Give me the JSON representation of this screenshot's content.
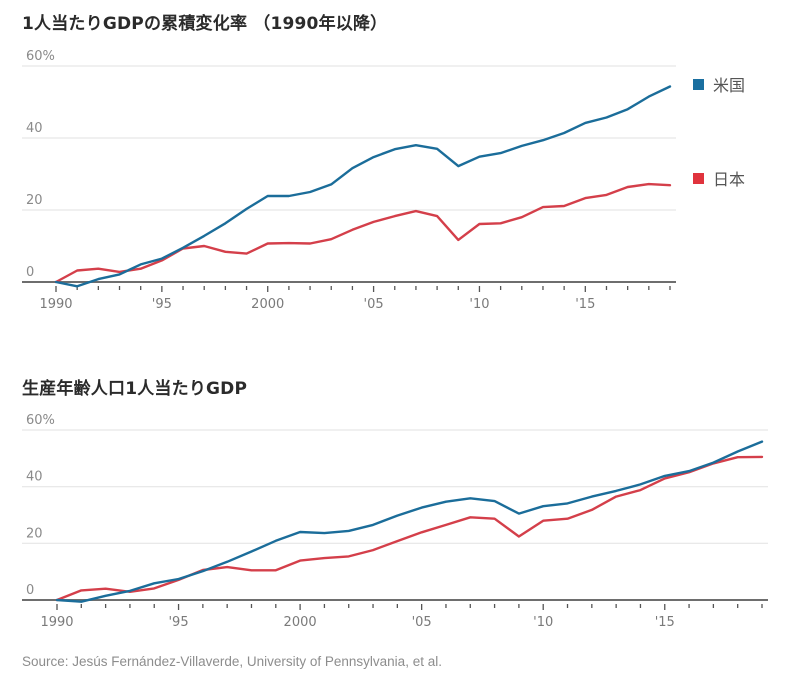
{
  "colors": {
    "us": "#1b6d9a",
    "japan": "#d43f4a",
    "us_legend": "#1a6fa0",
    "japan_legend": "#e0333d",
    "grid": "#e6e6e6",
    "axis": "#6e6e6e"
  },
  "legend": {
    "us_label": "米国",
    "japan_label": "日本"
  },
  "source": "Source: Jesús Fernández-Villaverde, University of Pennsylvania, et al.",
  "chart_data": [
    {
      "type": "line",
      "title": "1人当たりGDPの累積変化率 （1990年以降）",
      "xlabel": "",
      "ylabel": "",
      "xlim": [
        1990,
        2019
      ],
      "ylim": [
        0,
        60
      ],
      "y_ticks": [
        0,
        20,
        40,
        60
      ],
      "y_tick_labels": [
        "0",
        "20",
        "40",
        "60%"
      ],
      "x_tick_labels": [
        {
          "year": 1990,
          "label": "1990"
        },
        {
          "year": 1995,
          "label": "'95"
        },
        {
          "year": 2000,
          "label": "2000"
        },
        {
          "year": 2005,
          "label": "'05"
        },
        {
          "year": 2010,
          "label": "'10"
        },
        {
          "year": 2015,
          "label": "'15"
        }
      ],
      "grid": true,
      "legend_position": "right",
      "x": [
        1990,
        1991,
        1992,
        1993,
        1994,
        1995,
        1996,
        1997,
        1998,
        1999,
        2000,
        2001,
        2002,
        2003,
        2004,
        2005,
        2006,
        2007,
        2008,
        2009,
        2010,
        2011,
        2012,
        2013,
        2014,
        2015,
        2016,
        2017,
        2018,
        2019
      ],
      "series": [
        {
          "name": "米国",
          "key": "us",
          "values": [
            0,
            -1.2,
            0.8,
            2.1,
            4.9,
            6.5,
            9.5,
            12.8,
            16.3,
            20.3,
            23.9,
            23.9,
            25.0,
            27.1,
            31.6,
            34.7,
            36.9,
            38.0,
            37.0,
            32.2,
            34.8,
            35.8,
            37.8,
            39.4,
            41.4,
            44.2,
            45.7,
            48.0,
            51.5,
            54.3
          ]
        },
        {
          "name": "日本",
          "key": "japan",
          "values": [
            0,
            3.2,
            3.7,
            2.8,
            3.7,
            6.0,
            9.3,
            10.0,
            8.4,
            7.9,
            10.7,
            10.8,
            10.7,
            11.9,
            14.5,
            16.7,
            18.3,
            19.7,
            18.3,
            11.7,
            16.1,
            16.3,
            18.0,
            20.8,
            21.1,
            23.3,
            24.2,
            26.4,
            27.2,
            26.9
          ]
        }
      ]
    },
    {
      "type": "line",
      "title": "生産年齢人口1人当たりGDP",
      "xlabel": "",
      "ylabel": "",
      "xlim": [
        1990,
        2019
      ],
      "ylim": [
        0,
        60
      ],
      "y_ticks": [
        0,
        20,
        40,
        60
      ],
      "y_tick_labels": [
        "0",
        "20",
        "40",
        "60%"
      ],
      "x_tick_labels": [
        {
          "year": 1990,
          "label": "1990"
        },
        {
          "year": 1995,
          "label": "'95"
        },
        {
          "year": 2000,
          "label": "2000"
        },
        {
          "year": 2005,
          "label": "'05"
        },
        {
          "year": 2010,
          "label": "'10"
        },
        {
          "year": 2015,
          "label": "'15"
        }
      ],
      "grid": true,
      "legend_position": "none",
      "x": [
        1990,
        1991,
        1992,
        1993,
        1994,
        1995,
        1996,
        1997,
        1998,
        1999,
        2000,
        2001,
        2002,
        2003,
        2004,
        2005,
        2006,
        2007,
        2008,
        2009,
        2010,
        2011,
        2012,
        2013,
        2014,
        2015,
        2016,
        2017,
        2018,
        2019
      ],
      "series": [
        {
          "name": "米国",
          "key": "us",
          "values": [
            0,
            -0.6,
            1.5,
            3.2,
            5.9,
            7.4,
            10.2,
            13.5,
            17.1,
            20.9,
            24.0,
            23.6,
            24.4,
            26.5,
            29.8,
            32.6,
            34.7,
            35.9,
            34.9,
            30.5,
            33.1,
            34.1,
            36.5,
            38.5,
            40.8,
            43.8,
            45.5,
            48.5,
            52.4,
            55.9
          ]
        },
        {
          "name": "日本",
          "key": "japan",
          "values": [
            0,
            3.4,
            4.0,
            2.9,
            4.1,
            7.1,
            10.6,
            11.6,
            10.5,
            10.5,
            13.9,
            14.8,
            15.4,
            17.6,
            20.8,
            23.9,
            26.5,
            29.2,
            28.7,
            22.4,
            28.0,
            28.7,
            31.8,
            36.5,
            38.8,
            42.9,
            45.1,
            48.2,
            50.4,
            50.5
          ]
        }
      ]
    }
  ]
}
